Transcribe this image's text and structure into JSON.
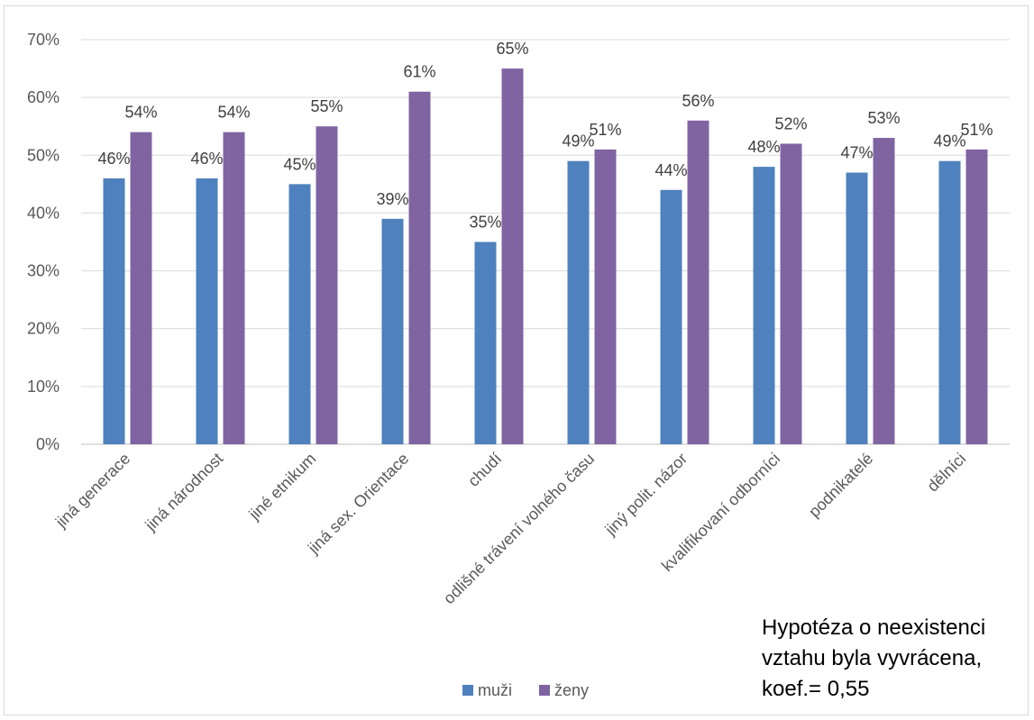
{
  "chart_data": {
    "type": "bar",
    "categories": [
      "jiná generace",
      "jiná národnost",
      "jiné etnikum",
      "jiná sex. Orientace",
      "chudí",
      "odlišné trávení volného času",
      "jiný polit. názor",
      "kvalifikovaní odborníci",
      "podnikatelé",
      "dělníci"
    ],
    "series": [
      {
        "name": "muži",
        "values": [
          46,
          46,
          45,
          39,
          35,
          49,
          44,
          48,
          47,
          49
        ],
        "labels": [
          "46%",
          "46%",
          "45%",
          "39%",
          "35%",
          "49%",
          "44%",
          "48%",
          "47%",
          "49%"
        ],
        "color": "#4e81bd"
      },
      {
        "name": "ženy",
        "values": [
          54,
          54,
          55,
          61,
          65,
          51,
          56,
          52,
          53,
          51
        ],
        "labels": [
          "54%",
          "54%",
          "55%",
          "61%",
          "65%",
          "51%",
          "56%",
          "52%",
          "53%",
          "51%"
        ],
        "color": "#8064a2"
      }
    ],
    "y_ticks": [
      "0%",
      "10%",
      "20%",
      "30%",
      "40%",
      "50%",
      "60%",
      "70%"
    ],
    "ylim": [
      0,
      70
    ],
    "grid": true,
    "legend_position": "bottom"
  },
  "note": {
    "text": "Hypotéza o neexistenci\nvztahu byla vyvrácena,\nkoef.= 0,55"
  }
}
